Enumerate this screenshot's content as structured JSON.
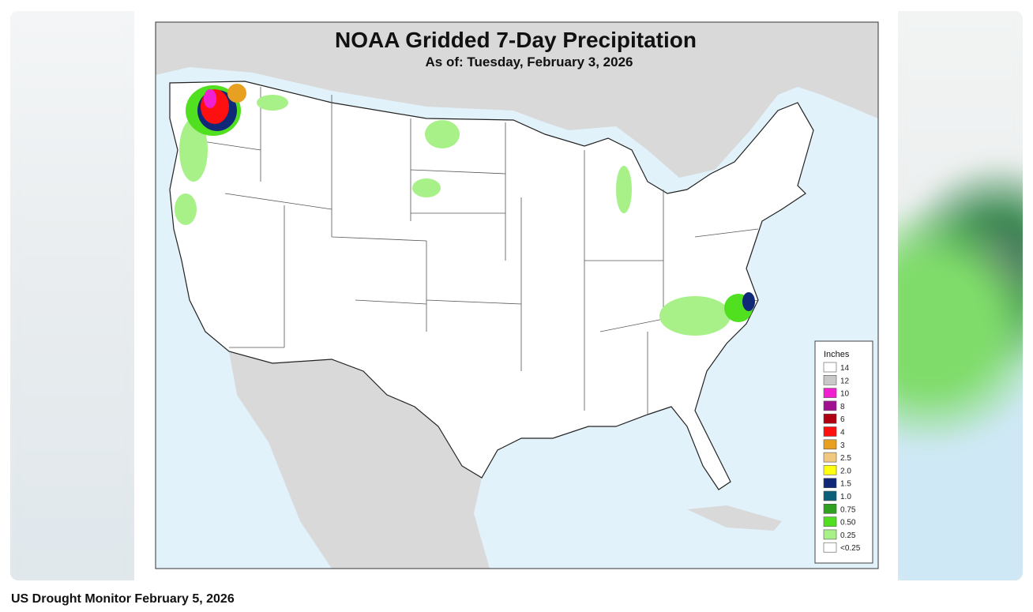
{
  "map": {
    "title": "NOAA Gridded 7-Day Precipitation",
    "subtitle": "As of: Tuesday, February 3, 2026",
    "legend": {
      "title": "Inches",
      "items": [
        {
          "label": "14",
          "color": "#ffffff"
        },
        {
          "label": "12",
          "color": "#c8c8c8"
        },
        {
          "label": "10",
          "color": "#f020d0"
        },
        {
          "label": "8",
          "color": "#a01090"
        },
        {
          "label": "6",
          "color": "#b00010"
        },
        {
          "label": "4",
          "color": "#ff1010"
        },
        {
          "label": "3",
          "color": "#e8a020"
        },
        {
          "label": "2.5",
          "color": "#f0c880"
        },
        {
          "label": "2.0",
          "color": "#ffff10"
        },
        {
          "label": "1.5",
          "color": "#102878"
        },
        {
          "label": "1.0",
          "color": "#0a6078"
        },
        {
          "label": "0.75",
          "color": "#30a020"
        },
        {
          "label": "0.50",
          "color": "#50e020"
        },
        {
          "label": "0.25",
          "color": "#a8f088"
        },
        {
          "label": "<0.25",
          "color": "#ffffff"
        }
      ]
    }
  },
  "caption": "US Drought Monitor February 5, 2026"
}
